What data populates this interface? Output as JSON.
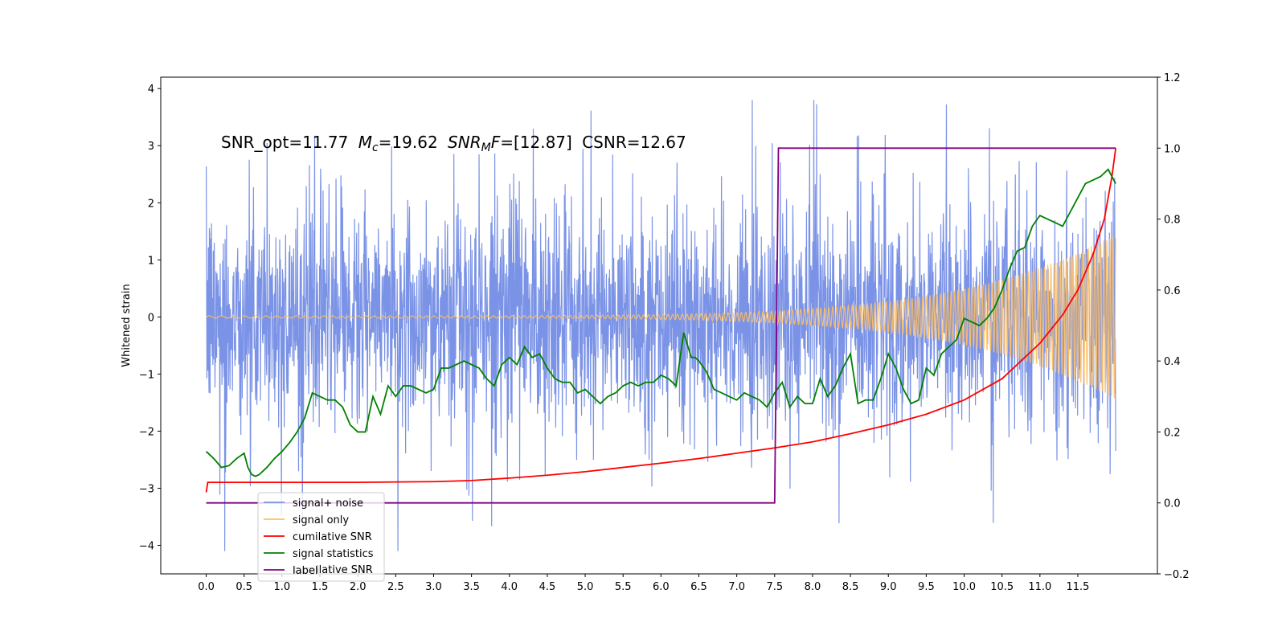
{
  "chart_data": {
    "type": "line",
    "title": "",
    "xlabel": "",
    "ylabel": "Whitened strain",
    "y2label": "",
    "xlim": [
      -0.6,
      12.55
    ],
    "ylim": [
      -4.5,
      4.2
    ],
    "y2lim": [
      -0.2,
      1.2
    ],
    "xticks": [
      "0.0",
      "0.5",
      "1.0",
      "1.5",
      "2.0",
      "2.5",
      "3.0",
      "3.5",
      "4.0",
      "4.5",
      "5.0",
      "5.5",
      "6.0",
      "6.5",
      "7.0",
      "7.5",
      "8.0",
      "8.5",
      "9.0",
      "9.5",
      "10.0",
      "10.5",
      "11.0",
      "11.5"
    ],
    "yticks": [
      "4",
      "3",
      "2",
      "1",
      "0",
      "−1",
      "−2",
      "−3",
      "−4"
    ],
    "y2ticks": [
      "1.2",
      "1.0",
      "0.8",
      "0.6",
      "0.4",
      "0.2",
      "0.0",
      "−0.2"
    ],
    "grid": false,
    "legend_position": "lower-left",
    "annotation": {
      "snr_opt": "SNR_opt=11.77",
      "mc_symbol": "M",
      "mc_sub": "c",
      "mc_value": "=19.62",
      "snr_mf_symbol": "SNR",
      "snr_mf_sub": "M",
      "snr_mf_symbol2": "F",
      "snr_mf_value": "=[12.87]",
      "csnr": "CSNR=12.67",
      "x": 0.2,
      "y": 3.0
    },
    "series": [
      {
        "name": "signal+ noise",
        "color": "#7b93e6",
        "axis": "left",
        "kind": "noise",
        "x_range": [
          0.0,
          12.0
        ],
        "envelope_min": [
          -3.0,
          -2.6
        ],
        "envelope_max": [
          3.6,
          3.8
        ],
        "typical_band": [
          -1.6,
          1.6
        ]
      },
      {
        "name": "signal only",
        "color": "#ffbf60",
        "axis": "left",
        "kind": "chirp",
        "x_range": [
          0.0,
          12.0
        ],
        "amplitude_start": 0.02,
        "amplitude_end": 1.45
      },
      {
        "name": "cumilative SNR",
        "color": "#ff0000",
        "axis": "right",
        "x": [
          0.0,
          0.02,
          0.5,
          1.0,
          2.0,
          3.0,
          3.5,
          4.0,
          4.5,
          5.0,
          5.5,
          6.0,
          6.5,
          7.0,
          7.5,
          8.0,
          8.5,
          9.0,
          9.5,
          10.0,
          10.5,
          11.0,
          11.3,
          11.5,
          11.7,
          11.85,
          11.95,
          12.0
        ],
        "y": [
          0.03,
          0.058,
          0.058,
          0.058,
          0.058,
          0.06,
          0.063,
          0.07,
          0.078,
          0.088,
          0.1,
          0.112,
          0.125,
          0.14,
          0.155,
          0.172,
          0.195,
          0.22,
          0.25,
          0.29,
          0.35,
          0.45,
          0.53,
          0.6,
          0.7,
          0.8,
          0.92,
          1.0
        ]
      },
      {
        "name": "signal statistics",
        "color": "#008000",
        "axis": "right",
        "x": [
          0.0,
          0.1,
          0.2,
          0.3,
          0.4,
          0.5,
          0.55,
          0.6,
          0.65,
          0.7,
          0.8,
          0.9,
          1.0,
          1.1,
          1.2,
          1.3,
          1.4,
          1.5,
          1.6,
          1.7,
          1.8,
          1.9,
          2.0,
          2.1,
          2.2,
          2.3,
          2.4,
          2.5,
          2.6,
          2.7,
          2.8,
          2.9,
          3.0,
          3.1,
          3.2,
          3.3,
          3.4,
          3.5,
          3.6,
          3.7,
          3.8,
          3.9,
          4.0,
          4.1,
          4.2,
          4.3,
          4.4,
          4.5,
          4.6,
          4.7,
          4.8,
          4.9,
          5.0,
          5.1,
          5.2,
          5.3,
          5.4,
          5.5,
          5.6,
          5.7,
          5.8,
          5.9,
          6.0,
          6.1,
          6.2,
          6.3,
          6.4,
          6.45,
          6.5,
          6.6,
          6.7,
          6.8,
          6.9,
          7.0,
          7.1,
          7.2,
          7.3,
          7.4,
          7.5,
          7.6,
          7.7,
          7.8,
          7.9,
          8.0,
          8.1,
          8.2,
          8.3,
          8.4,
          8.5,
          8.6,
          8.7,
          8.8,
          8.9,
          9.0,
          9.1,
          9.2,
          9.3,
          9.4,
          9.5,
          9.6,
          9.7,
          9.8,
          9.9,
          10.0,
          10.1,
          10.2,
          10.3,
          10.4,
          10.5,
          10.6,
          10.7,
          10.8,
          10.9,
          11.0,
          11.1,
          11.2,
          11.3,
          11.4,
          11.5,
          11.6,
          11.7,
          11.8,
          11.9,
          12.0
        ],
        "y": [
          0.145,
          0.125,
          0.1,
          0.105,
          0.125,
          0.14,
          0.1,
          0.08,
          0.075,
          0.08,
          0.1,
          0.125,
          0.145,
          0.17,
          0.2,
          0.24,
          0.31,
          0.3,
          0.29,
          0.29,
          0.27,
          0.22,
          0.2,
          0.2,
          0.3,
          0.25,
          0.33,
          0.3,
          0.33,
          0.33,
          0.32,
          0.31,
          0.32,
          0.38,
          0.38,
          0.39,
          0.4,
          0.39,
          0.38,
          0.35,
          0.33,
          0.39,
          0.41,
          0.39,
          0.44,
          0.41,
          0.42,
          0.38,
          0.35,
          0.34,
          0.34,
          0.31,
          0.32,
          0.3,
          0.28,
          0.3,
          0.31,
          0.33,
          0.34,
          0.33,
          0.34,
          0.34,
          0.36,
          0.35,
          0.33,
          0.48,
          0.41,
          0.41,
          0.4,
          0.37,
          0.32,
          0.31,
          0.3,
          0.29,
          0.31,
          0.3,
          0.29,
          0.27,
          0.31,
          0.34,
          0.27,
          0.3,
          0.28,
          0.28,
          0.35,
          0.3,
          0.33,
          0.38,
          0.42,
          0.28,
          0.29,
          0.29,
          0.35,
          0.42,
          0.38,
          0.32,
          0.28,
          0.29,
          0.38,
          0.36,
          0.42,
          0.44,
          0.46,
          0.52,
          0.51,
          0.5,
          0.52,
          0.55,
          0.6,
          0.66,
          0.71,
          0.72,
          0.78,
          0.81,
          0.8,
          0.79,
          0.78,
          0.82,
          0.86,
          0.9,
          0.91,
          0.92,
          0.94,
          0.9
        ],
        "note_x_offset": 0
      },
      {
        "name": "label",
        "color": "#800080",
        "axis": "right",
        "x": [
          0.0,
          7.5,
          7.5,
          7.55,
          7.55,
          12.0
        ],
        "y": [
          0.0,
          0.0,
          0.0,
          1.0,
          1.0,
          1.0
        ]
      }
    ],
    "legend_ghost_text": "cumilative SNR"
  }
}
